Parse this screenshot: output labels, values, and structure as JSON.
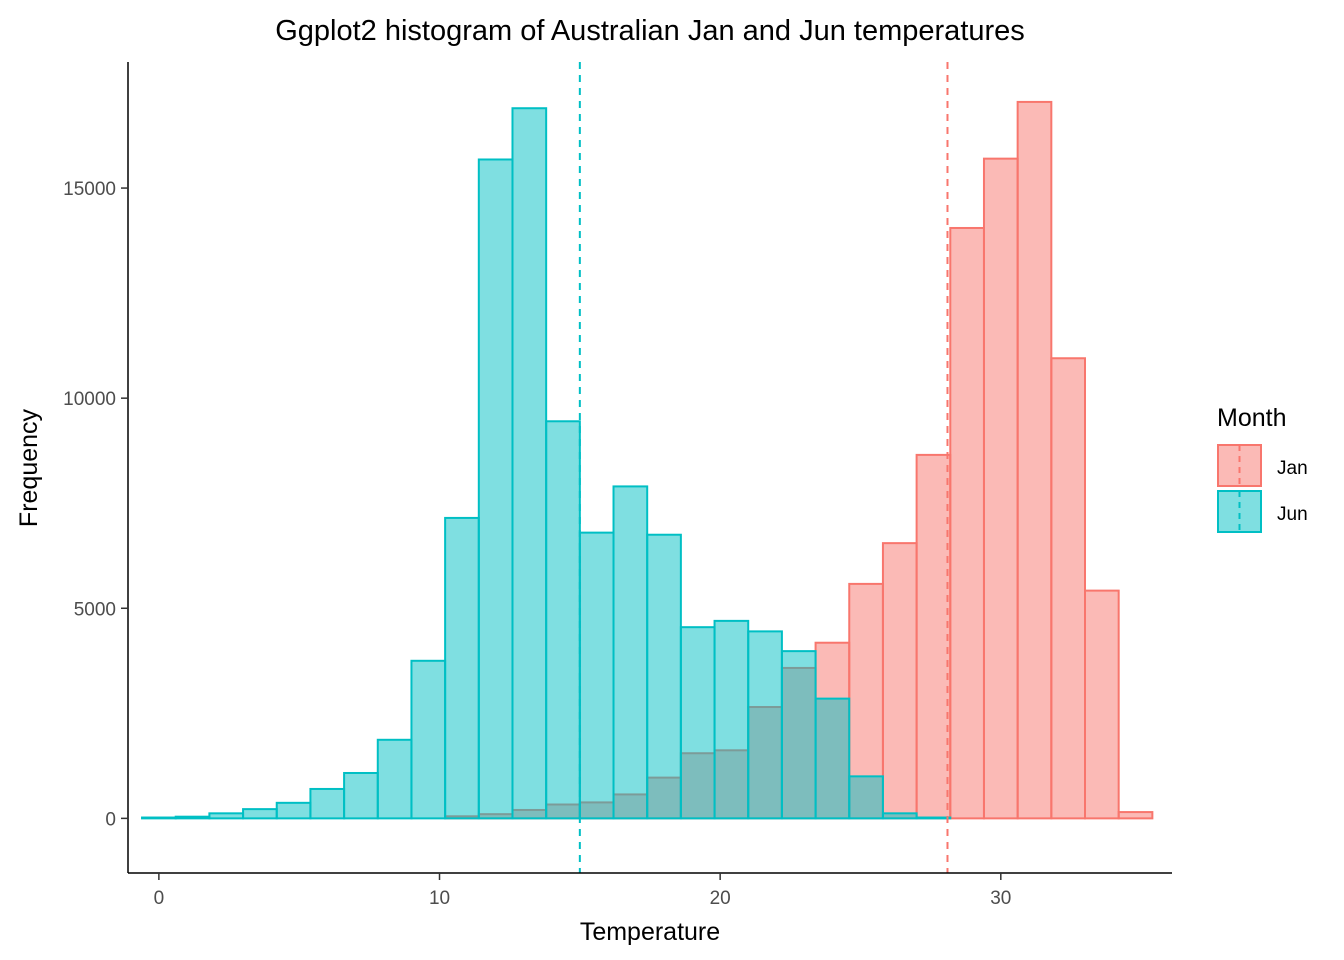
{
  "chart_data": {
    "type": "bar",
    "title": "Ggplot2 histogram of Australian Jan and Jun temperatures",
    "xlabel": "Temperature",
    "ylabel": "Frequency",
    "xlim": [
      -1.1,
      36.1
    ],
    "ylim": [
      -1300,
      18000
    ],
    "x_ticks": [
      0,
      10,
      20,
      30
    ],
    "y_ticks": [
      0,
      5000,
      10000,
      15000
    ],
    "grid": false,
    "bin_width": 1.2,
    "legend": {
      "title": "Month",
      "position": "right",
      "entries": [
        "Jan",
        "Jun"
      ]
    },
    "series": [
      {
        "name": "Jan",
        "fill": "#F8766D",
        "fill_opacity": 0.5,
        "stroke": "#F8766D",
        "mean": 28.1,
        "bins": [
          {
            "x0": -0.6,
            "x1": 0.6,
            "count": 0
          },
          {
            "x0": 0.6,
            "x1": 1.8,
            "count": 0
          },
          {
            "x0": 1.8,
            "x1": 3.0,
            "count": 0
          },
          {
            "x0": 3.0,
            "x1": 4.2,
            "count": 0
          },
          {
            "x0": 4.2,
            "x1": 5.4,
            "count": 0
          },
          {
            "x0": 5.4,
            "x1": 6.6,
            "count": 0
          },
          {
            "x0": 6.6,
            "x1": 7.8,
            "count": 0
          },
          {
            "x0": 7.8,
            "x1": 9.0,
            "count": 0
          },
          {
            "x0": 9.0,
            "x1": 10.2,
            "count": 0
          },
          {
            "x0": 10.2,
            "x1": 11.4,
            "count": 50
          },
          {
            "x0": 11.4,
            "x1": 12.6,
            "count": 100
          },
          {
            "x0": 12.6,
            "x1": 13.8,
            "count": 200
          },
          {
            "x0": 13.8,
            "x1": 15.0,
            "count": 330
          },
          {
            "x0": 15.0,
            "x1": 16.2,
            "count": 380
          },
          {
            "x0": 16.2,
            "x1": 17.4,
            "count": 570
          },
          {
            "x0": 17.4,
            "x1": 18.6,
            "count": 970
          },
          {
            "x0": 18.6,
            "x1": 19.8,
            "count": 1550
          },
          {
            "x0": 19.8,
            "x1": 21.0,
            "count": 1620
          },
          {
            "x0": 21.0,
            "x1": 22.2,
            "count": 2650
          },
          {
            "x0": 22.2,
            "x1": 23.4,
            "count": 3580
          },
          {
            "x0": 23.4,
            "x1": 24.6,
            "count": 4180
          },
          {
            "x0": 24.6,
            "x1": 25.8,
            "count": 5580
          },
          {
            "x0": 25.8,
            "x1": 27.0,
            "count": 6550
          },
          {
            "x0": 27.0,
            "x1": 28.2,
            "count": 8650
          },
          {
            "x0": 28.2,
            "x1": 29.4,
            "count": 14050
          },
          {
            "x0": 29.4,
            "x1": 30.6,
            "count": 15700
          },
          {
            "x0": 30.6,
            "x1": 31.8,
            "count": 17050
          },
          {
            "x0": 31.8,
            "x1": 33.0,
            "count": 10950
          },
          {
            "x0": 33.0,
            "x1": 34.2,
            "count": 5420
          },
          {
            "x0": 34.2,
            "x1": 35.4,
            "count": 150
          }
        ]
      },
      {
        "name": "Jun",
        "fill": "#00BFC4",
        "fill_opacity": 0.5,
        "stroke": "#00BFC4",
        "mean": 15.0,
        "bins": [
          {
            "x0": -0.6,
            "x1": 0.6,
            "count": 20
          },
          {
            "x0": 0.6,
            "x1": 1.8,
            "count": 40
          },
          {
            "x0": 1.8,
            "x1": 3.0,
            "count": 120
          },
          {
            "x0": 3.0,
            "x1": 4.2,
            "count": 220
          },
          {
            "x0": 4.2,
            "x1": 5.4,
            "count": 370
          },
          {
            "x0": 5.4,
            "x1": 6.6,
            "count": 700
          },
          {
            "x0": 6.6,
            "x1": 7.8,
            "count": 1080
          },
          {
            "x0": 7.8,
            "x1": 9.0,
            "count": 1870
          },
          {
            "x0": 9.0,
            "x1": 10.2,
            "count": 3750
          },
          {
            "x0": 10.2,
            "x1": 11.4,
            "count": 7150
          },
          {
            "x0": 11.4,
            "x1": 12.6,
            "count": 15680
          },
          {
            "x0": 12.6,
            "x1": 13.8,
            "count": 16900
          },
          {
            "x0": 13.8,
            "x1": 15.0,
            "count": 9450
          },
          {
            "x0": 15.0,
            "x1": 16.2,
            "count": 6800
          },
          {
            "x0": 16.2,
            "x1": 17.4,
            "count": 7900
          },
          {
            "x0": 17.4,
            "x1": 18.6,
            "count": 6750
          },
          {
            "x0": 18.6,
            "x1": 19.8,
            "count": 4550
          },
          {
            "x0": 19.8,
            "x1": 21.0,
            "count": 4700
          },
          {
            "x0": 21.0,
            "x1": 22.2,
            "count": 4450
          },
          {
            "x0": 22.2,
            "x1": 23.4,
            "count": 3980
          },
          {
            "x0": 23.4,
            "x1": 24.6,
            "count": 2850
          },
          {
            "x0": 24.6,
            "x1": 25.8,
            "count": 1000
          },
          {
            "x0": 25.8,
            "x1": 27.0,
            "count": 120
          },
          {
            "x0": 27.0,
            "x1": 28.2,
            "count": 20
          },
          {
            "x0": 28.2,
            "x1": 29.4,
            "count": 0
          },
          {
            "x0": 29.4,
            "x1": 30.6,
            "count": 0
          },
          {
            "x0": 30.6,
            "x1": 31.8,
            "count": 0
          },
          {
            "x0": 31.8,
            "x1": 33.0,
            "count": 0
          },
          {
            "x0": 33.0,
            "x1": 34.2,
            "count": 0
          },
          {
            "x0": 34.2,
            "x1": 35.4,
            "count": 0
          }
        ]
      }
    ]
  }
}
